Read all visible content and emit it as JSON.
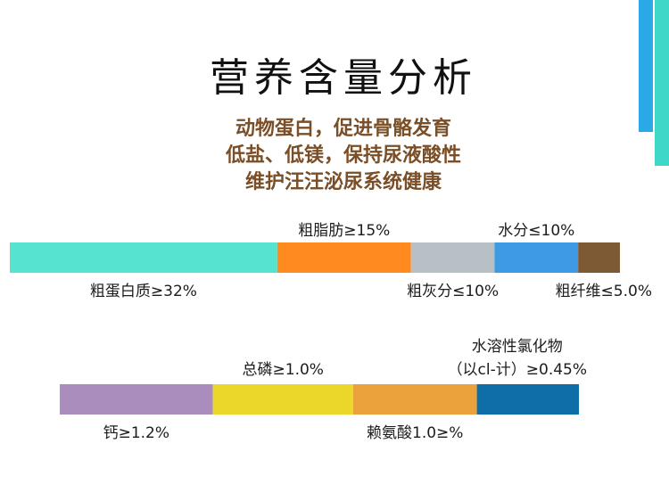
{
  "title": "营养含量分析",
  "subtitle_lines": [
    "动物蛋白，促进骨骼发育",
    "低盐、低镁，保持尿液酸性",
    "维护汪汪泌尿系统健康"
  ],
  "colors": {
    "deco_blue": "#2aa8e8",
    "deco_teal": "#3fd7c7",
    "subtitle": "#7a4e27"
  },
  "chart_data": [
    {
      "type": "bar",
      "stacked": true,
      "orientation": "horizontal",
      "segments": [
        {
          "label": "粗蛋白质≥32%",
          "value": 32,
          "color": "#56e3d0",
          "label_position": "below"
        },
        {
          "label": "粗脂肪≥15%",
          "value": 16,
          "color": "#ff8a1f",
          "label_position": "above"
        },
        {
          "label": "粗灰分≤10%",
          "value": 10,
          "color": "#b6c0c5",
          "label_position": "below"
        },
        {
          "label": "水分≤10%",
          "value": 10,
          "color": "#3f9ae6",
          "label_position": "above"
        },
        {
          "label": "粗纤维≤5.0%",
          "value": 5,
          "color": "#7d5a33",
          "label_position": "below"
        }
      ]
    },
    {
      "type": "bar",
      "stacked": true,
      "orientation": "horizontal",
      "segments": [
        {
          "label": "钙≥1.2%",
          "value": 1.2,
          "color": "#ab8dbd",
          "label_position": "below"
        },
        {
          "label": "总磷≥1.0%",
          "value": 1.1,
          "color": "#ead72a",
          "label_position": "above"
        },
        {
          "label": "赖氨酸1.0≥%",
          "value": 0.97,
          "color": "#eca23c",
          "label_position": "below"
        },
        {
          "label": "水溶性氯化物",
          "sublabel": "（以cl-计）≥0.45%",
          "value": 0.8,
          "color": "#0f6ea8",
          "label_position": "above"
        }
      ]
    }
  ]
}
